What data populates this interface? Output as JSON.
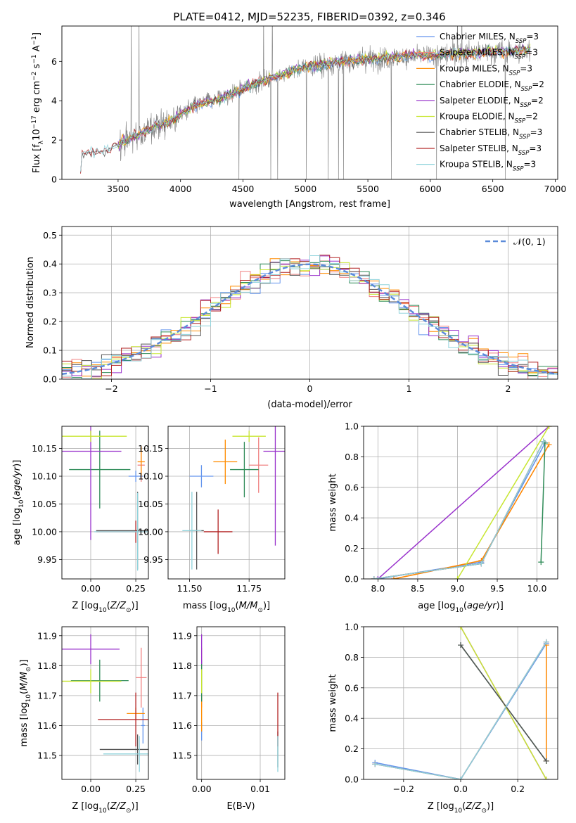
{
  "figure": {
    "title": "PLATE=0412, MJD=52235, FIBERID=0392, z=0.346"
  },
  "models": [
    {
      "name": "Chabrier MILES",
      "nssp": "3",
      "color": "#6495ed"
    },
    {
      "name": "Salpeter MILES",
      "nssp": "3",
      "color": "#f08080"
    },
    {
      "name": "Kroupa MILES",
      "nssp": "3",
      "color": "#ff8c00"
    },
    {
      "name": "Chabrier ELODIE",
      "nssp": "2",
      "color": "#2e8b57"
    },
    {
      "name": "Salpeter ELODIE",
      "nssp": "2",
      "color": "#9932cc"
    },
    {
      "name": "Kroupa ELODIE",
      "nssp": "2",
      "color": "#c8e632"
    },
    {
      "name": "Chabrier STELIB",
      "nssp": "3",
      "color": "#555555"
    },
    {
      "name": "Salpeter STELIB",
      "nssp": "3",
      "color": "#b22222"
    },
    {
      "name": "Kroupa STELIB",
      "nssp": "3",
      "color": "#8fd3dc"
    }
  ],
  "chart_data": [
    {
      "id": "spectrum",
      "type": "line",
      "xlabel": "wavelength [Angstrom, rest frame]",
      "ylabel": "Flux [f_λ 10^-17 erg cm^-2 s^-1 A^-1]",
      "xlim": [
        3050,
        7020
      ],
      "ylim": [
        0,
        7.8
      ],
      "xticks": [
        3500,
        4000,
        4500,
        5000,
        5500,
        6000,
        6500,
        7000
      ],
      "yticks": [
        0,
        2,
        4,
        6
      ],
      "data_color": "#808080",
      "legend": "top-right",
      "grid": false,
      "continuum": {
        "x": [
          3200,
          3210,
          3300,
          3400,
          3500,
          3600,
          3700,
          3800,
          3900,
          4000,
          4100,
          4200,
          4300,
          4400,
          4500,
          4600,
          4700,
          4800,
          4900,
          5000,
          5100,
          5200,
          5300,
          5400,
          5500,
          5600,
          5700,
          5800,
          5900,
          6000,
          6100,
          6200,
          6300,
          6400,
          6500,
          6600,
          6700,
          6800
        ],
        "y": [
          0.3,
          1.3,
          1.4,
          1.45,
          1.8,
          2.1,
          2.4,
          2.7,
          2.9,
          3.3,
          3.7,
          3.9,
          4.1,
          4.3,
          4.6,
          4.9,
          5.1,
          5.3,
          5.5,
          5.7,
          5.8,
          5.9,
          6.0,
          6.05,
          6.1,
          6.15,
          6.2,
          6.25,
          6.3,
          6.3,
          6.35,
          6.4,
          6.4,
          6.45,
          6.5,
          6.5,
          6.55,
          6.6
        ]
      }
    },
    {
      "id": "residuals",
      "type": "histogram",
      "xlabel": "(data-model)/error",
      "ylabel": "Normed distribution",
      "xlim": [
        -2.5,
        2.5
      ],
      "ylim": [
        0,
        0.53
      ],
      "xticks": [
        -2,
        -1,
        0,
        1,
        2
      ],
      "yticks": [
        0.0,
        0.1,
        0.2,
        0.3,
        0.4,
        0.5
      ],
      "grid": true,
      "legend": "top-right",
      "normal_label": "𝒩(0, 1)",
      "normal_color": "#5b8bd9",
      "bin_width": 0.1,
      "bin_start": -2.5
    },
    {
      "id": "age-vs-Z",
      "type": "errorbar",
      "xlabel": "Z [log10(Z/Z⊙)]",
      "ylabel": "age  [log10(age/yr)]",
      "xlim": [
        -0.16,
        0.32
      ],
      "ylim": [
        9.915,
        10.19
      ],
      "xticks": [
        0.0,
        0.25
      ],
      "yticks": [
        9.95,
        10.0,
        10.05,
        10.1,
        10.15
      ],
      "grid": true,
      "points": [
        {
          "m": 0,
          "x": 0.25,
          "y": 10.1,
          "xe": 0.04,
          "ye": 0.01
        },
        {
          "m": 1,
          "x": 0.28,
          "y": 10.12,
          "xe": 0.02,
          "ye": 0.03
        },
        {
          "m": 2,
          "x": 0.28,
          "y": 10.126,
          "xe": 0.02,
          "ye": 0.028
        },
        {
          "m": 3,
          "x": 0.05,
          "y": 10.112,
          "xe": 0.17,
          "ye": 0.07
        },
        {
          "m": 4,
          "x": 0.0,
          "y": 10.145,
          "xe": 0.17,
          "ye": 0.16
        },
        {
          "m": 5,
          "x": 0.0,
          "y": 10.172,
          "xe": 0.2,
          "ye": 0.01
        },
        {
          "m": 6,
          "x": 0.26,
          "y": 10.002,
          "xe": 0.23,
          "ye": 0.07
        },
        {
          "m": 7,
          "x": 0.25,
          "y": 10.0,
          "xe": 0.22,
          "ye": 0.02
        },
        {
          "m": 8,
          "x": 0.26,
          "y": 10.0,
          "xe": 0.24,
          "ye": 0.07
        }
      ]
    },
    {
      "id": "age-vs-mass",
      "type": "errorbar",
      "xlabel": "mass [log10(M/M⊙)]",
      "ylabel": "",
      "xlim": [
        11.41,
        11.9
      ],
      "ylim": [
        9.915,
        10.19
      ],
      "xticks": [
        11.5,
        11.75
      ],
      "yticks": [
        9.95,
        10.0,
        10.05,
        10.1,
        10.15
      ],
      "grid": true,
      "points": [
        {
          "m": 0,
          "x": 11.55,
          "y": 10.1,
          "xe": 0.05,
          "ye": 0.02
        },
        {
          "m": 1,
          "x": 11.79,
          "y": 10.12,
          "xe": 0.04,
          "ye": 0.05
        },
        {
          "m": 2,
          "x": 11.65,
          "y": 10.126,
          "xe": 0.05,
          "ye": 0.04
        },
        {
          "m": 3,
          "x": 11.73,
          "y": 10.112,
          "xe": 0.06,
          "ye": 0.05
        },
        {
          "m": 4,
          "x": 11.86,
          "y": 10.145,
          "xe": 0.05,
          "ye": 0.17
        },
        {
          "m": 5,
          "x": 11.75,
          "y": 10.172,
          "xe": 0.07,
          "ye": 0.01
        },
        {
          "m": 6,
          "x": 11.53,
          "y": 10.002,
          "xe": 0.03,
          "ye": 0.07
        },
        {
          "m": 7,
          "x": 11.62,
          "y": 10.0,
          "xe": 0.06,
          "ye": 0.04
        },
        {
          "m": 8,
          "x": 11.51,
          "y": 10.002,
          "xe": 0.04,
          "ye": 0.07
        }
      ]
    },
    {
      "id": "massweight-vs-age",
      "type": "line",
      "xlabel": "age  [log10(age/yr)]",
      "ylabel": "mass weight",
      "xlim": [
        7.82,
        10.26
      ],
      "ylim": [
        0,
        1
      ],
      "xticks": [
        8.0,
        8.5,
        9.0,
        9.5,
        10.0
      ],
      "yticks": [
        0.0,
        0.2,
        0.4,
        0.6,
        0.8,
        1.0
      ],
      "grid": true,
      "series": [
        {
          "m": 0,
          "x": [
            8.0,
            9.3,
            10.1
          ],
          "y": [
            0.0,
            0.11,
            0.89
          ]
        },
        {
          "m": 1,
          "x": [
            8.2,
            9.3,
            10.15
          ],
          "y": [
            0.0,
            0.12,
            0.88
          ]
        },
        {
          "m": 2,
          "x": [
            8.2,
            9.3,
            10.15
          ],
          "y": [
            0.0,
            0.12,
            0.88
          ]
        },
        {
          "m": 3,
          "x": [
            10.05,
            10.1
          ],
          "y": [
            0.11,
            0.89
          ]
        },
        {
          "m": 4,
          "x": [
            8.0,
            10.15
          ],
          "y": [
            0.0,
            1.0
          ]
        },
        {
          "m": 5,
          "x": [
            9.0,
            10.15
          ],
          "y": [
            0.0,
            1.0
          ]
        },
        {
          "m": 6,
          "x": [
            7.95,
            9.3,
            10.08
          ],
          "y": [
            0.0,
            0.1,
            0.9
          ]
        },
        {
          "m": 7,
          "x": [
            7.95,
            9.3,
            10.08
          ],
          "y": [
            0.0,
            0.1,
            0.9
          ]
        },
        {
          "m": 8,
          "x": [
            7.95,
            9.3,
            10.08
          ],
          "y": [
            0.0,
            0.1,
            0.9
          ]
        }
      ]
    },
    {
      "id": "mass-vs-Z",
      "type": "errorbar",
      "xlabel": "Z [log10(Z/Z⊙)]",
      "ylabel": "mass [log10(M/M⊙)]",
      "xlim": [
        -0.16,
        0.32
      ],
      "ylim": [
        11.42,
        11.93
      ],
      "xticks": [
        0.0,
        0.25
      ],
      "yticks": [
        11.5,
        11.6,
        11.7,
        11.8,
        11.9
      ],
      "grid": true,
      "points": [
        {
          "m": 0,
          "x": 0.29,
          "y": 11.6,
          "xe": 0.01,
          "ye": 0.06
        },
        {
          "m": 1,
          "x": 0.28,
          "y": 11.76,
          "xe": 0.03,
          "ye": 0.1
        },
        {
          "m": 2,
          "x": 0.25,
          "y": 11.64,
          "xe": 0.05,
          "ye": 0.02
        },
        {
          "m": 3,
          "x": 0.05,
          "y": 11.75,
          "xe": 0.16,
          "ye": 0.07
        },
        {
          "m": 4,
          "x": 0.0,
          "y": 11.855,
          "xe": 0.16,
          "ye": 0.05
        },
        {
          "m": 5,
          "x": 0.0,
          "y": 11.748,
          "xe": 0.17,
          "ye": 0.04
        },
        {
          "m": 6,
          "x": 0.26,
          "y": 11.52,
          "xe": 0.21,
          "ye": 0.05
        },
        {
          "m": 7,
          "x": 0.25,
          "y": 11.62,
          "xe": 0.21,
          "ye": 0.09
        },
        {
          "m": 8,
          "x": 0.27,
          "y": 11.505,
          "xe": 0.2,
          "ye": 0.06
        }
      ]
    },
    {
      "id": "mass-vs-EBV",
      "type": "errorbar",
      "xlabel": "E(B-V)",
      "ylabel": "",
      "xlim": [
        -0.0008,
        0.0142
      ],
      "ylim": [
        11.42,
        11.93
      ],
      "xticks": [
        0.0,
        0.01
      ],
      "yticks": [
        11.5,
        11.6,
        11.7,
        11.8,
        11.9
      ],
      "grid": true,
      "points": [
        {
          "m": 0,
          "x": 0.0,
          "y": 11.58,
          "xe": 0.0,
          "ye": 0.03
        },
        {
          "m": 1,
          "x": 0.0,
          "y": 11.76,
          "xe": 0.0,
          "ye": 0.1
        },
        {
          "m": 2,
          "x": 0.0,
          "y": 11.64,
          "xe": 0.0,
          "ye": 0.06
        },
        {
          "m": 3,
          "x": 0.0,
          "y": 11.75,
          "xe": 0.0,
          "ye": 0.07
        },
        {
          "m": 4,
          "x": 0.0,
          "y": 11.855,
          "xe": 0.0,
          "ye": 0.05
        },
        {
          "m": 5,
          "x": 0.0,
          "y": 11.748,
          "xe": 0.0,
          "ye": 0.04
        },
        {
          "m": 6,
          "x": 0.013,
          "y": 11.52,
          "xe": 0.0,
          "ye": 0.06
        },
        {
          "m": 7,
          "x": 0.013,
          "y": 11.62,
          "xe": 0.0,
          "ye": 0.09
        },
        {
          "m": 8,
          "x": 0.013,
          "y": 11.505,
          "xe": 0.0,
          "ye": 0.06
        }
      ]
    },
    {
      "id": "massweight-vs-Z",
      "type": "line",
      "xlabel": "Z [log10(Z/Z⊙)]",
      "ylabel": "mass weight",
      "xlim": [
        -0.34,
        0.34
      ],
      "ylim": [
        0,
        1
      ],
      "xticks": [
        -0.2,
        0.0,
        0.2
      ],
      "yticks": [
        0.0,
        0.2,
        0.4,
        0.6,
        0.8,
        1.0
      ],
      "grid": true,
      "series": [
        {
          "m": 0,
          "x": [
            -0.3,
            0.0,
            0.3
          ],
          "y": [
            0.11,
            0.0,
            0.89
          ]
        },
        {
          "m": 1,
          "x": [
            0.3,
            0.3
          ],
          "y": [
            0.12,
            0.88
          ]
        },
        {
          "m": 2,
          "x": [
            0.3,
            0.3
          ],
          "y": [
            0.12,
            0.88
          ]
        },
        {
          "m": 3,
          "x": [
            0.0,
            0.3
          ],
          "y": [
            0.88,
            0.12
          ]
        },
        {
          "m": 4,
          "x": [
            0.0,
            0.3
          ],
          "y": [
            1.0,
            0.0
          ]
        },
        {
          "m": 5,
          "x": [
            0.0,
            0.3
          ],
          "y": [
            1.0,
            0.0
          ]
        },
        {
          "m": 6,
          "x": [
            0.0,
            0.3
          ],
          "y": [
            0.88,
            0.12
          ]
        },
        {
          "m": 7,
          "x": [
            -0.3,
            0.0,
            0.3
          ],
          "y": [
            0.1,
            0.0,
            0.9
          ]
        },
        {
          "m": 8,
          "x": [
            -0.3,
            0.0,
            0.3
          ],
          "y": [
            0.1,
            0.0,
            0.9
          ]
        }
      ]
    }
  ]
}
